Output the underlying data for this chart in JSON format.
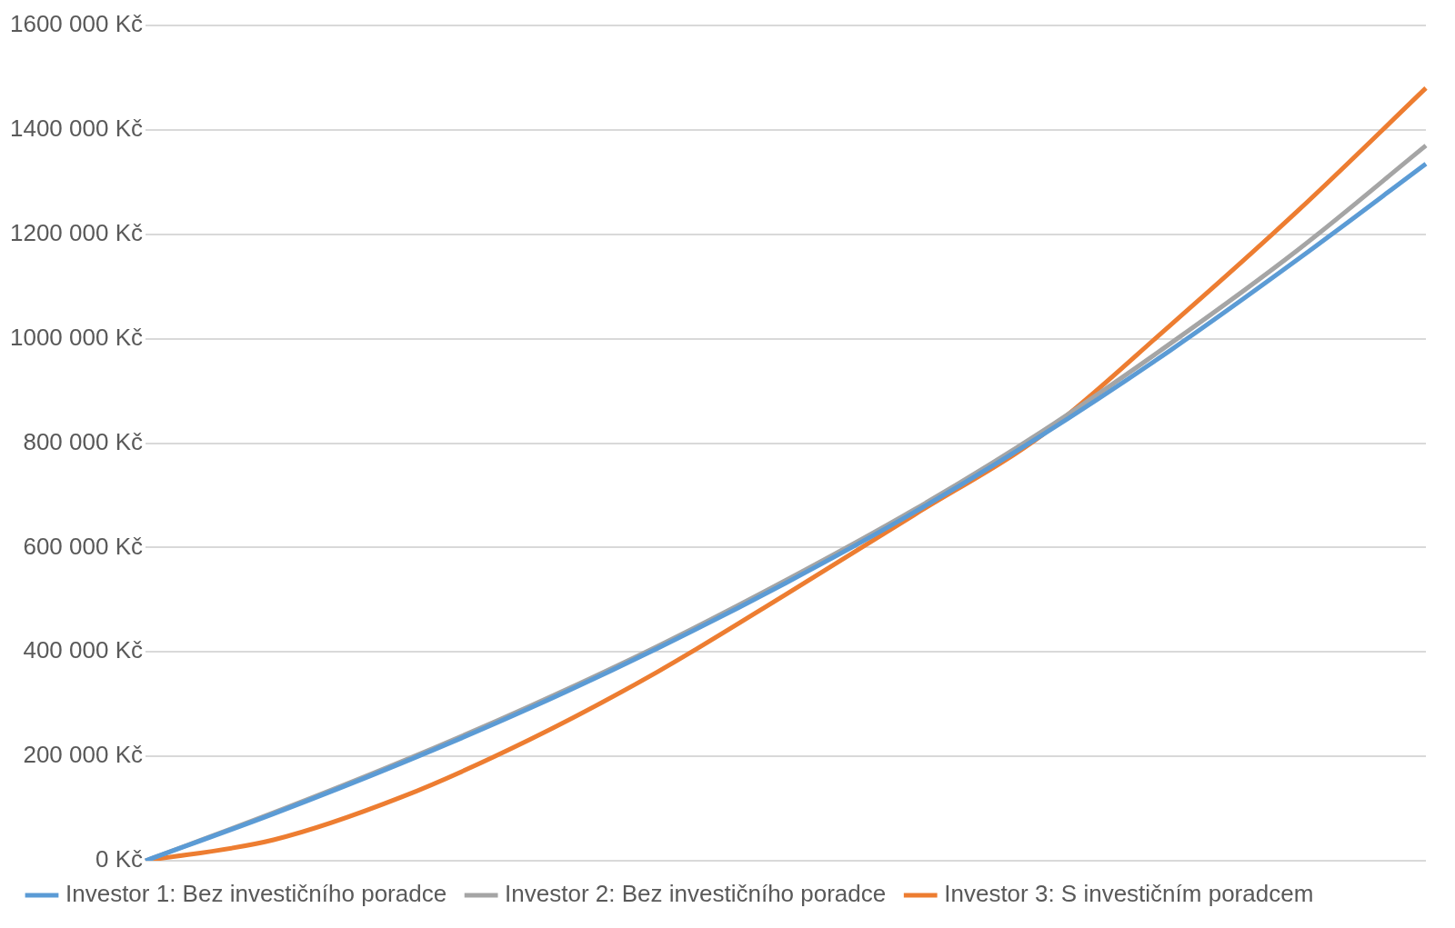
{
  "chart_data": {
    "type": "line",
    "categories": [
      null,
      null,
      null,
      null,
      null,
      null,
      null,
      null,
      null,
      null,
      null
    ],
    "series": [
      {
        "name": "Investor 1: Bez investičního poradce",
        "color": "#5b9bd5",
        "values": [
          0,
          90000,
          187000,
          292000,
          407000,
          532000,
          667000,
          815000,
          977000,
          1152000,
          1335000
        ]
      },
      {
        "name": "Investor 2: Bez investičního poradce",
        "color": "#a5a5a5",
        "values": [
          0,
          92000,
          190000,
          296000,
          411000,
          537000,
          672000,
          822000,
          990000,
          1170000,
          1370000
        ]
      },
      {
        "name": "Investor 3: S investičním poradcem",
        "color": "#ed7d31",
        "values": [
          0,
          40000,
          122000,
          232000,
          362000,
          510000,
          662000,
          815000,
          1025000,
          1245000,
          1480000
        ]
      }
    ],
    "ylim": [
      0,
      1600000
    ],
    "yticks": [
      {
        "value": 0,
        "label": "0 Kč"
      },
      {
        "value": 200000,
        "label": "200 000 Kč"
      },
      {
        "value": 400000,
        "label": "400 000 Kč"
      },
      {
        "value": 600000,
        "label": "600 000 Kč"
      },
      {
        "value": 800000,
        "label": "800 000 Kč"
      },
      {
        "value": 1000000,
        "label": "1000 000 Kč"
      },
      {
        "value": 1200000,
        "label": "1200 000 Kč"
      },
      {
        "value": 1400000,
        "label": "1400 000 Kč"
      },
      {
        "value": 1600000,
        "label": "1600 000 Kč"
      }
    ],
    "grid": "y",
    "legend": "bottom",
    "marker": "none",
    "line_style": "solid",
    "tick_labels": "y"
  }
}
